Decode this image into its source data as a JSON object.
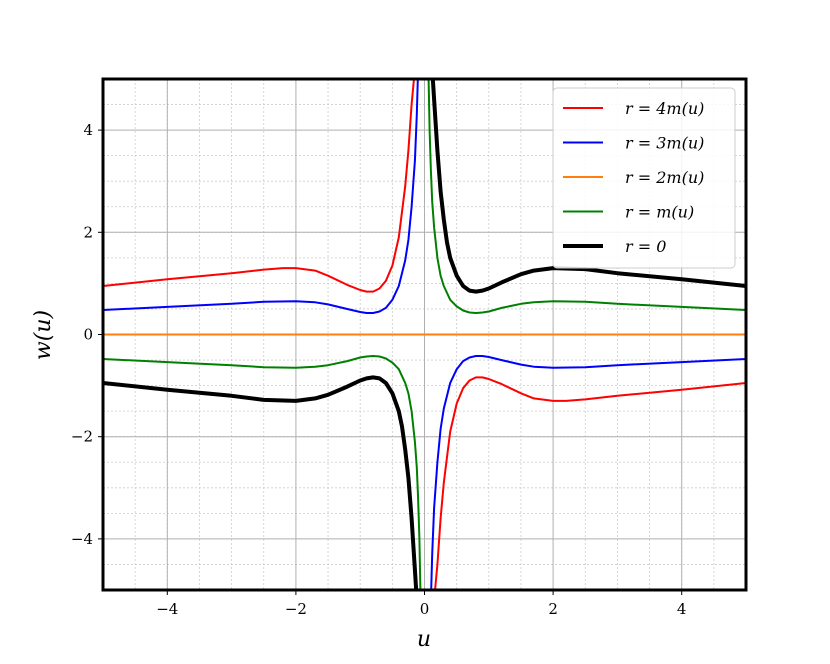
{
  "chart_data": {
    "type": "line",
    "title": "",
    "xlabel": "u",
    "ylabel": "w(u)",
    "xlim": [
      -5,
      5
    ],
    "ylim": [
      -5,
      5
    ],
    "xticks": [
      -4,
      -2,
      0,
      2,
      4
    ],
    "xtick_labels": [
      "−4",
      "−2",
      "0",
      "2",
      "4"
    ],
    "yticks": [
      -4,
      -2,
      0,
      2,
      4
    ],
    "ytick_labels": [
      "−4",
      "−2",
      "0",
      "2",
      "4"
    ],
    "grid": true,
    "minor_grid": true,
    "legend_position": "top-right",
    "series": [
      {
        "name": "r = 4m(u)",
        "color": "#ff0000",
        "x": [
          -5,
          -4,
          -3,
          -2.5,
          -2.2,
          -2,
          -1.7,
          -1.5,
          -1.2,
          -1,
          -0.9,
          -0.8,
          -0.7,
          -0.6,
          -0.5,
          -0.4,
          -0.3,
          -0.25,
          -0.2,
          -0.15,
          -0.12,
          -0.1
        ],
        "y": [
          0.95,
          1.08,
          1.2,
          1.27,
          1.3,
          1.3,
          1.25,
          1.15,
          0.97,
          0.87,
          0.84,
          0.84,
          0.9,
          1.05,
          1.35,
          1.9,
          2.9,
          3.6,
          4.5,
          5.2,
          5.5,
          5.5
        ],
        "mirror": "odd",
        "linewidth": 2
      },
      {
        "name": "r = 3m(u)",
        "color": "#0000ff",
        "x": [
          -5,
          -4,
          -3,
          -2.5,
          -2,
          -1.7,
          -1.5,
          -1.2,
          -1,
          -0.9,
          -0.8,
          -0.7,
          -0.6,
          -0.5,
          -0.4,
          -0.3,
          -0.25,
          -0.2,
          -0.15,
          -0.12,
          -0.1,
          -0.08
        ],
        "y": [
          0.48,
          0.54,
          0.6,
          0.64,
          0.65,
          0.63,
          0.59,
          0.5,
          0.44,
          0.42,
          0.42,
          0.45,
          0.52,
          0.68,
          0.95,
          1.45,
          1.85,
          2.5,
          3.4,
          4.3,
          5.2,
          5.5
        ],
        "mirror": "odd",
        "linewidth": 2
      },
      {
        "name": "r = 2m(u)",
        "color": "#ff7f0e",
        "x": [
          -5,
          5
        ],
        "y": [
          0,
          0
        ],
        "mirror": "none",
        "linewidth": 2
      },
      {
        "name": "r = m(u)",
        "color": "#008000",
        "x": [
          0.05,
          0.06,
          0.08,
          0.1,
          0.12,
          0.15,
          0.2,
          0.25,
          0.3,
          0.4,
          0.5,
          0.6,
          0.7,
          0.8,
          0.9,
          1,
          1.2,
          1.5,
          1.7,
          2,
          2.5,
          3,
          4,
          5
        ],
        "y": [
          5.5,
          5.2,
          4.0,
          3.2,
          2.6,
          2.1,
          1.5,
          1.15,
          0.95,
          0.68,
          0.55,
          0.47,
          0.43,
          0.42,
          0.43,
          0.45,
          0.52,
          0.6,
          0.63,
          0.65,
          0.64,
          0.6,
          0.54,
          0.48
        ],
        "mirror": "odd",
        "linewidth": 2
      },
      {
        "name": "r = 0",
        "color": "#000000",
        "x": [
          0.1,
          0.12,
          0.15,
          0.2,
          0.25,
          0.3,
          0.35,
          0.4,
          0.5,
          0.6,
          0.7,
          0.8,
          0.9,
          1,
          1.2,
          1.5,
          1.7,
          2,
          2.5,
          3,
          4,
          5
        ],
        "y": [
          5.5,
          5.2,
          4.6,
          3.6,
          2.8,
          2.25,
          1.8,
          1.5,
          1.15,
          0.95,
          0.86,
          0.84,
          0.86,
          0.9,
          1.02,
          1.18,
          1.25,
          1.3,
          1.28,
          1.2,
          1.08,
          0.95
        ],
        "mirror": "odd",
        "linewidth": 4
      }
    ]
  }
}
